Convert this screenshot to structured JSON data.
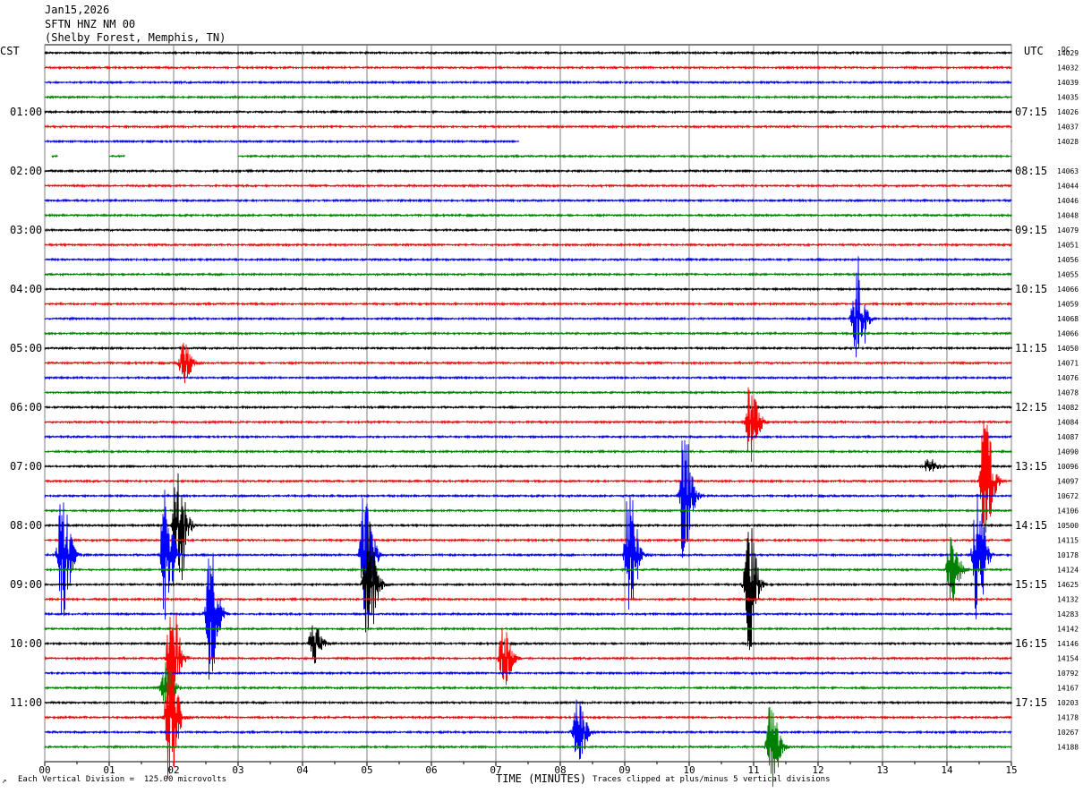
{
  "header": {
    "date": "Jan15,2026",
    "station": "SFTN HNZ NM 00",
    "location": "(Shelby Forest, Memphis, TN)"
  },
  "footer": {
    "scale_note": "Each Vertical Division =  125.00 microvolts",
    "clip_note": "Traces clipped at plus/minus 5 vertical divisions",
    "corner_mark": "↗"
  },
  "colors": {
    "trace_cycle": [
      "#000000",
      "#ff0000",
      "#0000ff",
      "#008000"
    ],
    "grid": "#808080"
  },
  "chart_data": {
    "type": "line",
    "title": "",
    "xlabel": "TIME (MINUTES)",
    "ylabel": "",
    "left_axis_label": "CST",
    "right_axis_label": "UTC",
    "dc_label": "DC",
    "xlim": [
      0,
      15
    ],
    "x_ticks": [
      "00",
      "01",
      "02",
      "03",
      "04",
      "05",
      "06",
      "07",
      "08",
      "09",
      "10",
      "11",
      "12",
      "13",
      "14",
      "15"
    ],
    "row_count": 48,
    "left_labels": [
      {
        "row": 4,
        "text": "01:00"
      },
      {
        "row": 8,
        "text": "02:00"
      },
      {
        "row": 12,
        "text": "03:00"
      },
      {
        "row": 16,
        "text": "04:00"
      },
      {
        "row": 20,
        "text": "05:00"
      },
      {
        "row": 24,
        "text": "06:00"
      },
      {
        "row": 28,
        "text": "07:00"
      },
      {
        "row": 32,
        "text": "08:00"
      },
      {
        "row": 36,
        "text": "09:00"
      },
      {
        "row": 40,
        "text": "10:00"
      },
      {
        "row": 44,
        "text": "11:00"
      }
    ],
    "right_labels": [
      {
        "row": 4,
        "text": "07:15"
      },
      {
        "row": 8,
        "text": "08:15"
      },
      {
        "row": 12,
        "text": "09:15"
      },
      {
        "row": 16,
        "text": "10:15"
      },
      {
        "row": 20,
        "text": "11:15"
      },
      {
        "row": 24,
        "text": "12:15"
      },
      {
        "row": 28,
        "text": "13:15"
      },
      {
        "row": 32,
        "text": "14:15"
      },
      {
        "row": 36,
        "text": "15:15"
      },
      {
        "row": 40,
        "text": "16:15"
      },
      {
        "row": 44,
        "text": "17:15"
      }
    ],
    "dc_values": [
      "14029",
      "14032",
      "14039",
      "14035",
      "14026",
      "14037",
      "14028",
      "",
      "14063",
      "14044",
      "14046",
      "14048",
      "14079",
      "14051",
      "14056",
      "14055",
      "14066",
      "14059",
      "14068",
      "14066",
      "14050",
      "14071",
      "14076",
      "14078",
      "14082",
      "14084",
      "14087",
      "14090",
      "10096",
      "14097",
      "10672",
      "14106",
      "10500",
      "14115",
      "10178",
      "14124",
      "14625",
      "14132",
      "14283",
      "14142",
      "14146",
      "14154",
      "10792",
      "14167",
      "10203",
      "14178",
      "10267",
      "14188"
    ],
    "gaps": [
      {
        "row": 6,
        "from": 7.35,
        "to": 15
      },
      {
        "row": 7,
        "from": 0,
        "to": 0.1
      },
      {
        "row": 7,
        "from": 0.2,
        "to": 1.0
      },
      {
        "row": 7,
        "from": 1.25,
        "to": 3.0
      }
    ],
    "events": [
      {
        "row": 18,
        "minute": 12.58,
        "amp": 5
      },
      {
        "row": 21,
        "minute": 2.13,
        "amp": 1.5
      },
      {
        "row": 25,
        "minute": 10.93,
        "amp": 2.8
      },
      {
        "row": 28,
        "minute": 13.7,
        "amp": 0.6
      },
      {
        "row": 29,
        "minute": 14.57,
        "amp": 5
      },
      {
        "row": 30,
        "minute": 9.9,
        "amp": 5
      },
      {
        "row": 32,
        "minute": 2.05,
        "amp": 5
      },
      {
        "row": 34,
        "minute": 0.25,
        "amp": 5
      },
      {
        "row": 34,
        "minute": 1.85,
        "amp": 5
      },
      {
        "row": 34,
        "minute": 4.95,
        "amp": 5
      },
      {
        "row": 34,
        "minute": 9.05,
        "amp": 5
      },
      {
        "row": 34,
        "minute": 14.45,
        "amp": 5
      },
      {
        "row": 35,
        "minute": 14.05,
        "amp": 2.5
      },
      {
        "row": 36,
        "minute": 10.9,
        "amp": 5
      },
      {
        "row": 36,
        "minute": 5.0,
        "amp": 5
      },
      {
        "row": 38,
        "minute": 2.55,
        "amp": 5
      },
      {
        "row": 40,
        "minute": 4.15,
        "amp": 1.5
      },
      {
        "row": 41,
        "minute": 1.95,
        "amp": 5
      },
      {
        "row": 41,
        "minute": 7.1,
        "amp": 2.2
      },
      {
        "row": 43,
        "minute": 1.85,
        "amp": 2.0
      },
      {
        "row": 45,
        "minute": 1.92,
        "amp": 5
      },
      {
        "row": 46,
        "minute": 8.25,
        "amp": 2.5
      },
      {
        "row": 47,
        "minute": 11.25,
        "amp": 3.0
      }
    ]
  }
}
